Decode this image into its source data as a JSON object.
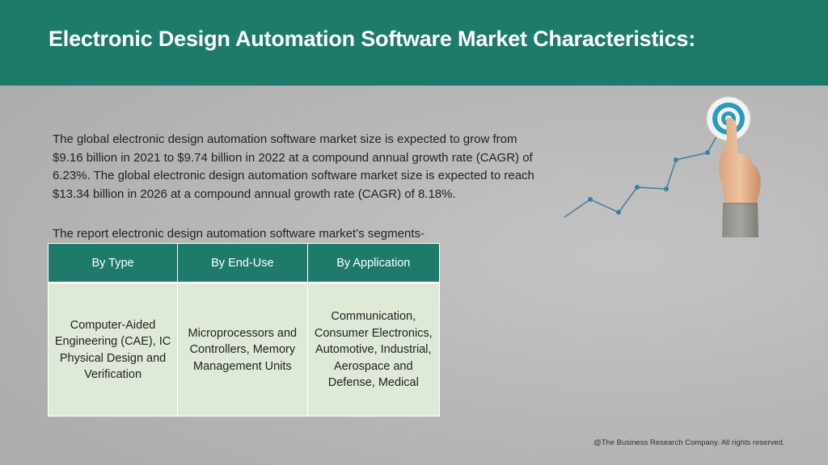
{
  "header": {
    "title": "Electronic Design Automation Software Market Characteristics:",
    "background_color": "#1e7b6c"
  },
  "body": {
    "paragraph": "The global electronic design automation software market size is expected to grow from $9.16 billion in 2021 to $9.74 billion in 2022 at a compound annual growth rate (CAGR) of 6.23%. The global electronic design automation software market size is expected to reach $13.34 billion in 2026 at a compound annual growth rate (CAGR) of 8.18%.",
    "segments_label": "The report electronic design automation software market’s segments-"
  },
  "table": {
    "headers": [
      "By Type",
      "By End-Use",
      "By Application"
    ],
    "cells": [
      "Computer-Aided Engineering (CAE), IC Physical Design and Verification",
      "Microprocessors and Controllers, Memory Management Units",
      "Communication, Consumer Electronics, Automotive, Industrial, Aerospace and Defense, Medical"
    ],
    "header_color": "#1e7b6c",
    "cell_color": "#dfe9d8"
  },
  "graphic": {
    "icon": "growth-chart-target-icon"
  },
  "footer": {
    "copyright": "@The Business Research Company. All rights reserved."
  }
}
